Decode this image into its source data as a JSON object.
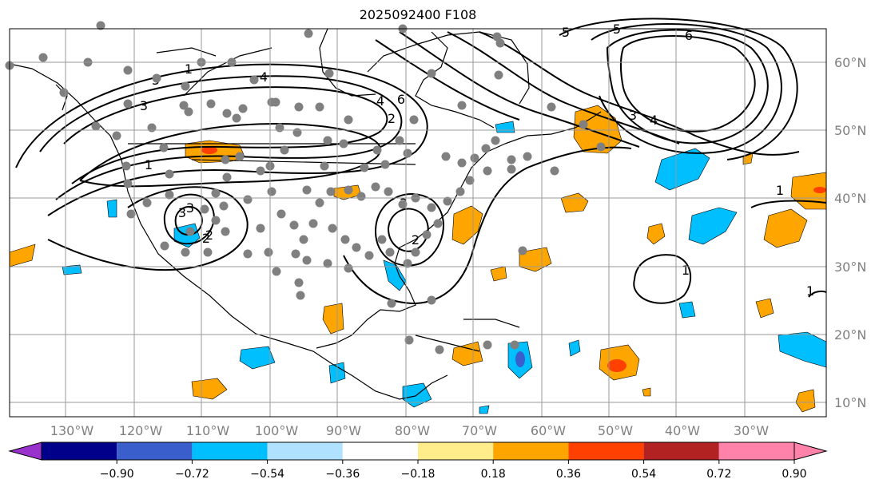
{
  "title": "2025092400 F108",
  "map": {
    "lon_labels": [
      "130°W",
      "120°W",
      "110°W",
      "100°W",
      "90°W",
      "80°W",
      "70°W",
      "60°W",
      "50°W",
      "40°W",
      "30°W"
    ],
    "lat_labels": [
      "60°N",
      "50°N",
      "40°N",
      "30°N",
      "20°N",
      "10°N"
    ],
    "contour_labels": [
      "5",
      "4",
      "3",
      "3",
      "2",
      "1",
      "6",
      "5",
      "4",
      "3",
      "2",
      "6",
      "5",
      "4",
      "3",
      "3",
      "2",
      "2",
      "1",
      "1",
      "1",
      "1"
    ]
  },
  "colorbar": {
    "ticks": [
      "−0.90",
      "−0.72",
      "−0.54",
      "−0.36",
      "−0.18",
      "0.18",
      "0.36",
      "0.54",
      "0.72",
      "0.90"
    ],
    "colors": [
      "#9932cc",
      "#00008b",
      "#3a5fcd",
      "#00bfff",
      "#b0e2ff",
      "#ffffff",
      "#ffec8b",
      "#ffa500",
      "#ff4000",
      "#b22222",
      "#ff82ab"
    ]
  }
}
